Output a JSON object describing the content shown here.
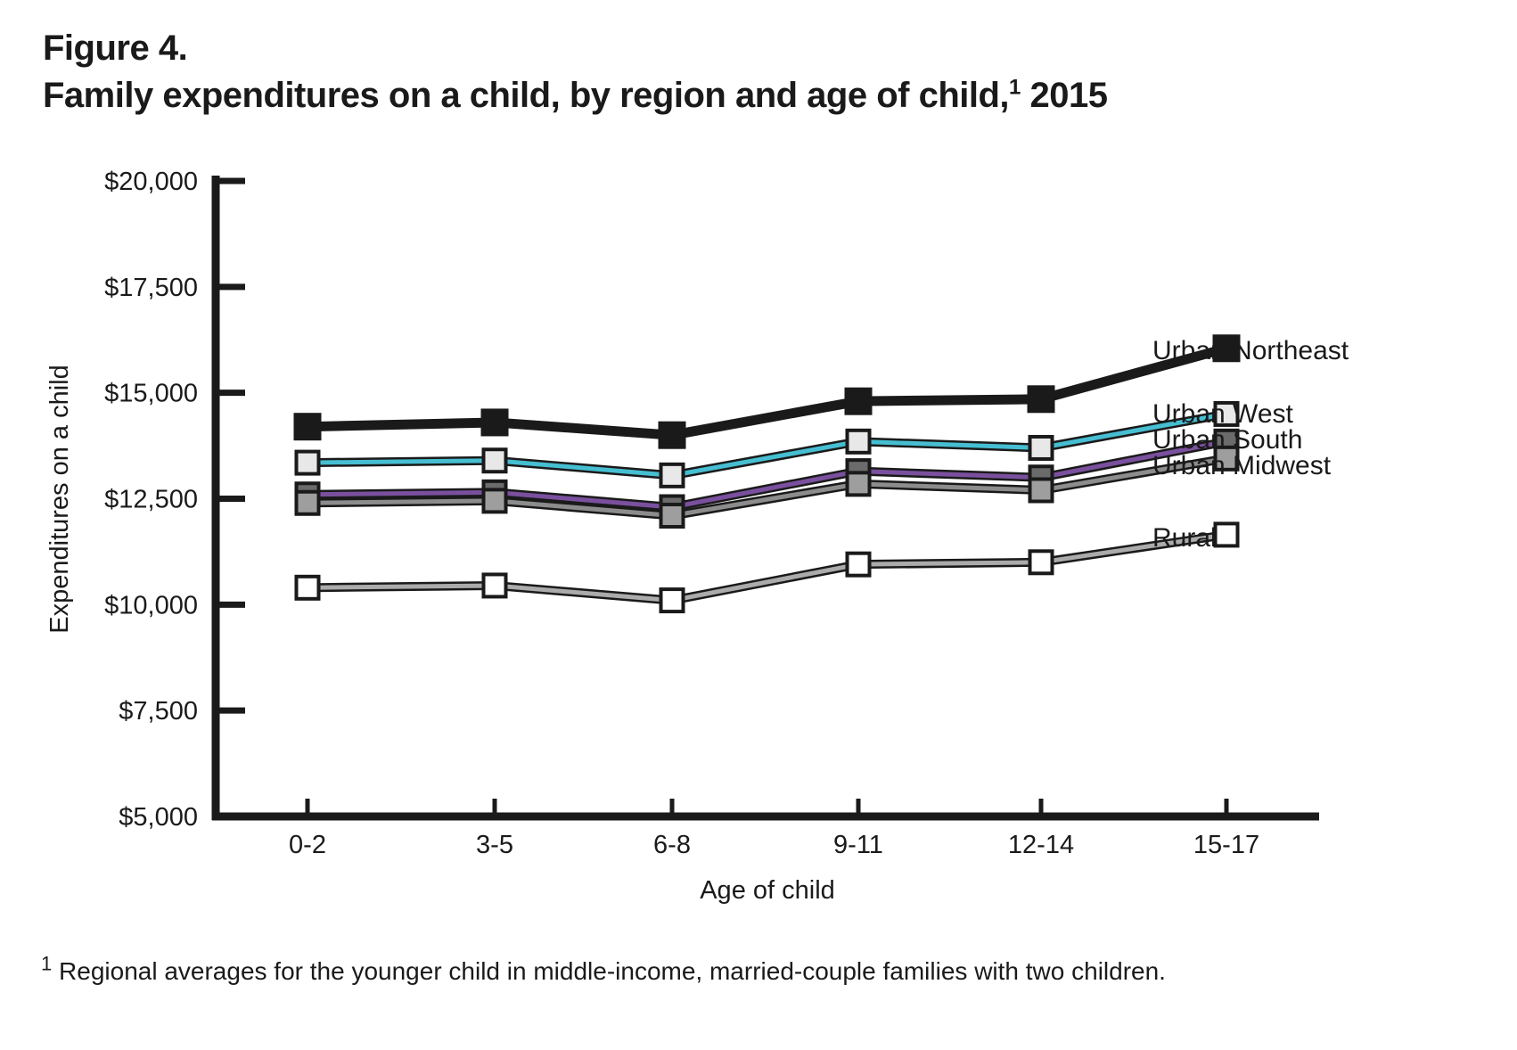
{
  "title": {
    "line1": "Figure 4.",
    "line2_before_sup": "Family expenditures on a child, by region and age of child,",
    "line2_sup": "1",
    "line2_after_sup": " 2015"
  },
  "footnote": {
    "sup": "1",
    "text": " Regional averages for the younger child in middle-income, married-couple families with two children."
  },
  "chart_data": {
    "type": "line",
    "title": "Family expenditures on a child, by region and age of child, 2015",
    "xlabel": "Age of child",
    "ylabel": "Expenditures on a child",
    "categories": [
      "0-2",
      "3-5",
      "6-8",
      "9-11",
      "12-14",
      "15-17"
    ],
    "y_axis": {
      "min": 5000,
      "max": 20000,
      "tick_interval": 2500,
      "tick_labels": [
        "$5,000",
        "$7,500",
        "$10,000",
        "$12,500",
        "$15,000",
        "$17,500",
        "$20,000"
      ]
    },
    "grid": false,
    "legend_position": "right-of-last-point",
    "series": [
      {
        "name": "Urban Northeast",
        "values": [
          14200,
          14300,
          14000,
          14800,
          14850,
          16050
        ],
        "line_color": "#1a1a1a",
        "marker_fill": "#1a1a1a"
      },
      {
        "name": "Urban West",
        "values": [
          13350,
          13400,
          13050,
          13850,
          13700,
          14500
        ],
        "line_color": "#46bed2",
        "marker_fill": "#e8e8e8"
      },
      {
        "name": "Urban South",
        "values": [
          12600,
          12650,
          12300,
          13150,
          13000,
          13850
        ],
        "line_color": "#7a509e",
        "marker_fill": "#6b6b6b"
      },
      {
        "name": "Urban Midwest",
        "values": [
          12400,
          12450,
          12100,
          12850,
          12700,
          13450
        ],
        "line_color": "#8c8c8c",
        "marker_fill": "#9e9e9e"
      },
      {
        "name": "Rural",
        "values": [
          10400,
          10450,
          10100,
          10950,
          11000,
          11650
        ],
        "line_color": "#ababab",
        "marker_fill": "#ffffff"
      }
    ]
  }
}
